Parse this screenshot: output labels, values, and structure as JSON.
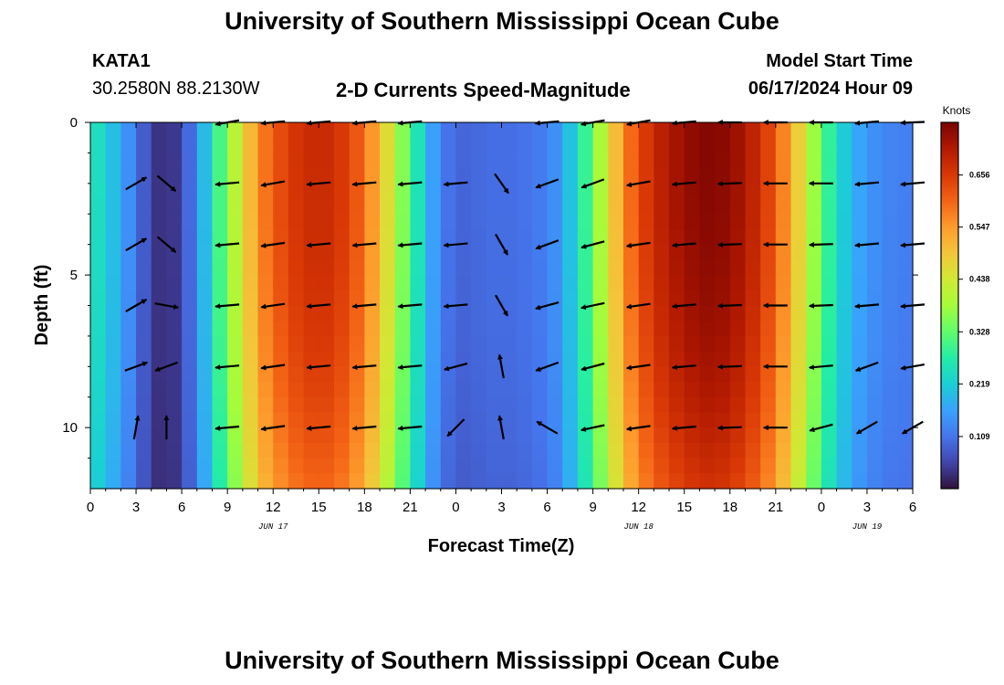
{
  "page": {
    "title": "University of Southern Mississippi Ocean Cube",
    "station": "KATA1",
    "coords": "30.2580N  88.2130W",
    "subtitle": "2-D Currents Speed-Magnitude",
    "model_label": "Model Start Time",
    "model_time": "06/17/2024 Hour 09",
    "footer_title": "University of Southern Mississippi Ocean Cube"
  },
  "chart_data": {
    "type": "heatmap",
    "xlabel": "Forecast Time(Z)",
    "ylabel": "Depth (ft)",
    "xlim": [
      0,
      54
    ],
    "ylim": [
      0,
      12
    ],
    "y_inverted": true,
    "x_tick_labels": [
      "0",
      "3",
      "6",
      "9",
      "12",
      "15",
      "18",
      "21",
      "0",
      "3",
      "6",
      "9",
      "12",
      "15",
      "18",
      "21",
      "0",
      "3",
      "6"
    ],
    "y_tick_labels": [
      "0",
      "5",
      "10"
    ],
    "y_ticks": [
      0,
      5,
      10
    ],
    "date_labels": [
      {
        "x": 12,
        "label": "JUN 17"
      },
      {
        "x": 36,
        "label": "JUN 18"
      },
      {
        "x": 51,
        "label": "JUN 19"
      }
    ],
    "colorbar": {
      "unit": "Knots",
      "min": 0.0,
      "max": 0.766,
      "labels": [
        "0.109",
        "0.219",
        "0.328",
        "0.438",
        "0.547",
        "0.656"
      ],
      "colors": [
        "#30123b",
        "#4145ab",
        "#4675ed",
        "#39a2fc",
        "#1bcfd4",
        "#24eca6",
        "#61fc6c",
        "#a4fc3b",
        "#d1e834",
        "#f3c63a",
        "#fe9b2d",
        "#f36315",
        "#d93806",
        "#b11901",
        "#7a0402"
      ]
    },
    "speed_profile": {
      "x": [
        0,
        1,
        2,
        3,
        4,
        5,
        6,
        7,
        8,
        9,
        10,
        11,
        12,
        13,
        14,
        15,
        16,
        17,
        18,
        19,
        20,
        21,
        22,
        23,
        24,
        25,
        26,
        27,
        28,
        29,
        30,
        31,
        32,
        33,
        34,
        35,
        36,
        37,
        38,
        39,
        40,
        41,
        42,
        43,
        44,
        45,
        46,
        47,
        48,
        49,
        50,
        51,
        52,
        53,
        54
      ],
      "speed_knots": [
        0.26,
        0.22,
        0.17,
        0.11,
        0.05,
        0.02,
        0.06,
        0.13,
        0.25,
        0.35,
        0.45,
        0.55,
        0.6,
        0.64,
        0.66,
        0.67,
        0.66,
        0.63,
        0.58,
        0.5,
        0.4,
        0.3,
        0.2,
        0.12,
        0.09,
        0.09,
        0.1,
        0.1,
        0.1,
        0.11,
        0.12,
        0.16,
        0.24,
        0.33,
        0.44,
        0.55,
        0.62,
        0.67,
        0.7,
        0.72,
        0.74,
        0.74,
        0.73,
        0.7,
        0.66,
        0.6,
        0.52,
        0.42,
        0.32,
        0.24,
        0.18,
        0.15,
        0.13,
        0.12,
        0.12
      ]
    },
    "vectors": {
      "depths": [
        0,
        2,
        4,
        6,
        8,
        10,
        12
      ],
      "times": [
        3,
        5,
        6,
        9,
        12,
        15,
        18,
        21,
        24,
        27,
        30,
        33,
        36,
        39,
        42,
        45,
        48,
        51,
        54
      ],
      "direction_deg": [
        [
          null,
          null,
          null,
          260,
          265,
          265,
          265,
          265,
          null,
          null,
          265,
          260,
          260,
          265,
          270,
          270,
          270,
          265,
          268
        ],
        [
          60,
          130,
          null,
          265,
          260,
          265,
          265,
          265,
          265,
          145,
          250,
          250,
          260,
          265,
          268,
          270,
          270,
          265,
          265
        ],
        [
          60,
          130,
          null,
          265,
          262,
          265,
          265,
          265,
          265,
          150,
          250,
          255,
          262,
          265,
          268,
          270,
          268,
          265,
          265
        ],
        [
          60,
          100,
          null,
          265,
          262,
          265,
          265,
          265,
          265,
          150,
          255,
          258,
          262,
          265,
          268,
          270,
          268,
          265,
          265
        ],
        [
          70,
          250,
          null,
          265,
          262,
          265,
          265,
          265,
          255,
          350,
          250,
          255,
          262,
          265,
          268,
          270,
          265,
          250,
          260
        ],
        [
          10,
          0,
          null,
          265,
          262,
          265,
          265,
          265,
          225,
          350,
          300,
          258,
          262,
          265,
          268,
          270,
          255,
          240,
          240
        ],
        [
          null,
          null,
          null,
          null,
          null,
          null,
          null,
          null,
          null,
          null,
          null,
          null,
          null,
          null,
          null,
          null,
          null,
          null,
          null
        ]
      ]
    }
  }
}
